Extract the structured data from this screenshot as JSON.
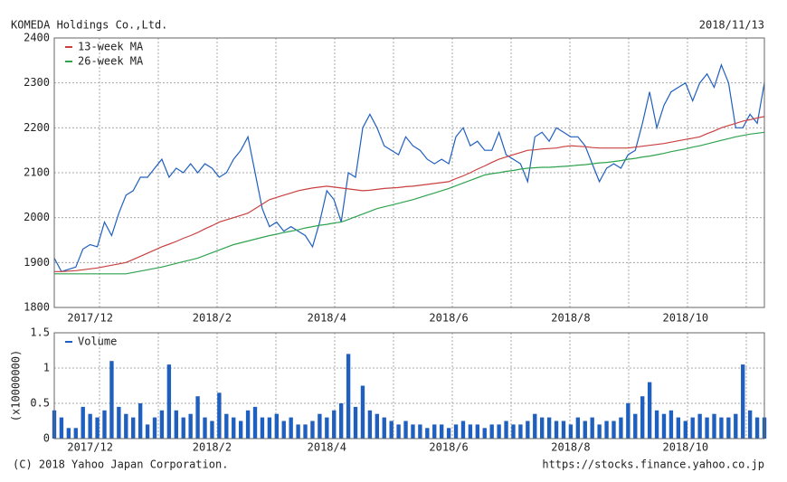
{
  "header": {
    "title": "KOMEDA Holdings Co.,Ltd.",
    "date": "2018/11/13"
  },
  "footer": {
    "copyright": "(C) 2018 Yahoo Japan Corporation.",
    "url": "https://stocks.finance.yahoo.co.jp"
  },
  "chart_data": [
    {
      "type": "line",
      "categories": [
        null,
        null,
        null,
        null,
        null,
        "2017/12",
        null,
        null,
        null,
        null,
        null,
        null,
        null,
        null,
        null,
        null,
        null,
        null,
        null,
        null,
        null,
        null,
        "2018/2",
        null,
        null,
        null,
        null,
        null,
        null,
        null,
        null,
        null,
        null,
        null,
        null,
        null,
        null,
        null,
        "2018/4",
        null,
        null,
        null,
        null,
        null,
        null,
        null,
        null,
        null,
        null,
        null,
        null,
        null,
        null,
        null,
        null,
        "2018/6",
        null,
        null,
        null,
        null,
        null,
        null,
        null,
        null,
        null,
        null,
        null,
        null,
        null,
        null,
        null,
        null,
        "2018/8",
        null,
        null,
        null,
        null,
        null,
        null,
        null,
        null,
        null,
        null,
        null,
        null,
        null,
        null,
        null,
        "2018/10",
        null,
        null,
        null,
        null,
        null,
        null,
        null,
        null,
        null,
        null,
        null
      ],
      "series": [
        {
          "color": "#1f5fbf",
          "values": [
            1910,
            1880,
            1885,
            1890,
            1930,
            1940,
            1935,
            1990,
            1960,
            2010,
            2050,
            2060,
            2090,
            2090,
            2110,
            2130,
            2090,
            2110,
            2100,
            2120,
            2100,
            2120,
            2110,
            2090,
            2100,
            2130,
            2150,
            2180,
            2100,
            2020,
            1980,
            1990,
            1970,
            1980,
            1970,
            1960,
            1935,
            1990,
            2060,
            2040,
            1990,
            2100,
            2090,
            2200,
            2230,
            2200,
            2160,
            2150,
            2140,
            2180,
            2160,
            2150,
            2130,
            2120,
            2130,
            2120,
            2180,
            2200,
            2160,
            2170,
            2150,
            2150,
            2190,
            2140,
            2130,
            2120,
            2080,
            2180,
            2190,
            2170,
            2200,
            2190,
            2180,
            2180,
            2160,
            2120,
            2080,
            2110,
            2120,
            2110,
            2140,
            2150,
            2210,
            2280,
            2200,
            2250,
            2280,
            2290,
            2300,
            2260,
            2300,
            2320,
            2290,
            2340,
            2300,
            2200,
            2200,
            2230,
            2210,
            2300
          ]
        },
        {
          "name": "13-week MA",
          "color": "#c94040",
          "values": [
            1880,
            1880,
            1881,
            1882,
            1884,
            1886,
            1888,
            1891,
            1894,
            1897,
            1900,
            1907,
            1914,
            1921,
            1928,
            1935,
            1941,
            1947,
            1954,
            1960,
            1967,
            1975,
            1982,
            1990,
            1995,
            2000,
            2005,
            2010,
            2020,
            2030,
            2040,
            2045,
            2050,
            2055,
            2060,
            2063,
            2066,
            2068,
            2070,
            2068,
            2066,
            2064,
            2062,
            2060,
            2061,
            2063,
            2065,
            2066,
            2067,
            2069,
            2070,
            2072,
            2074,
            2076,
            2078,
            2080,
            2087,
            2093,
            2100,
            2108,
            2115,
            2123,
            2130,
            2135,
            2140,
            2145,
            2150,
            2151,
            2153,
            2154,
            2155,
            2158,
            2160,
            2159,
            2158,
            2156,
            2155,
            2155,
            2155,
            2155,
            2155,
            2157,
            2159,
            2161,
            2163,
            2165,
            2168,
            2171,
            2174,
            2177,
            2180,
            2187,
            2193,
            2200,
            2205,
            2210,
            2215,
            2218,
            2222,
            2225
          ]
        },
        {
          "name": "26-week MA",
          "color": "#2fa34f",
          "values": [
            1875,
            1875,
            1875,
            1875,
            1875,
            1875,
            1875,
            1875,
            1875,
            1875,
            1875,
            1878,
            1881,
            1884,
            1887,
            1890,
            1894,
            1898,
            1902,
            1906,
            1910,
            1916,
            1922,
            1928,
            1934,
            1940,
            1944,
            1948,
            1952,
            1956,
            1960,
            1963,
            1967,
            1970,
            1973,
            1977,
            1980,
            1983,
            1985,
            1988,
            1990,
            1996,
            2002,
            2008,
            2014,
            2020,
            2024,
            2028,
            2032,
            2036,
            2040,
            2045,
            2050,
            2055,
            2060,
            2065,
            2071,
            2077,
            2083,
            2089,
            2095,
            2098,
            2100,
            2103,
            2105,
            2108,
            2110,
            2111,
            2112,
            2112,
            2113,
            2114,
            2115,
            2117,
            2118,
            2120,
            2122,
            2123,
            2125,
            2127,
            2130,
            2132,
            2135,
            2137,
            2140,
            2143,
            2147,
            2150,
            2153,
            2157,
            2160,
            2164,
            2168,
            2172,
            2176,
            2180,
            2183,
            2186,
            2188,
            2190
          ]
        }
      ],
      "ylim": [
        1800,
        2400
      ],
      "yticks": [
        1800,
        1900,
        2000,
        2100,
        2200,
        2300,
        2400
      ],
      "grid": true
    },
    {
      "type": "bar",
      "ylabel": "(x10000000)",
      "categories": [
        null,
        null,
        null,
        null,
        null,
        "2017/12",
        null,
        null,
        null,
        null,
        null,
        null,
        null,
        null,
        null,
        null,
        null,
        null,
        null,
        null,
        null,
        null,
        "2018/2",
        null,
        null,
        null,
        null,
        null,
        null,
        null,
        null,
        null,
        null,
        null,
        null,
        null,
        null,
        null,
        "2018/4",
        null,
        null,
        null,
        null,
        null,
        null,
        null,
        null,
        null,
        null,
        null,
        null,
        null,
        null,
        null,
        null,
        "2018/6",
        null,
        null,
        null,
        null,
        null,
        null,
        null,
        null,
        null,
        null,
        null,
        null,
        null,
        null,
        null,
        null,
        "2018/8",
        null,
        null,
        null,
        null,
        null,
        null,
        null,
        null,
        null,
        null,
        null,
        null,
        null,
        null,
        null,
        "2018/10",
        null,
        null,
        null,
        null,
        null,
        null,
        null,
        null,
        null,
        null,
        null
      ],
      "series": [
        {
          "name": "Volume",
          "color": "#1f5fbf",
          "values": [
            0.4,
            0.3,
            0.15,
            0.15,
            0.45,
            0.35,
            0.3,
            0.4,
            1.1,
            0.45,
            0.35,
            0.3,
            0.5,
            0.2,
            0.3,
            0.4,
            1.05,
            0.4,
            0.3,
            0.35,
            0.6,
            0.3,
            0.25,
            0.65,
            0.35,
            0.3,
            0.25,
            0.4,
            0.45,
            0.3,
            0.3,
            0.35,
            0.25,
            0.3,
            0.2,
            0.2,
            0.25,
            0.35,
            0.3,
            0.4,
            0.5,
            1.2,
            0.45,
            0.75,
            0.4,
            0.35,
            0.3,
            0.25,
            0.2,
            0.25,
            0.2,
            0.2,
            0.15,
            0.2,
            0.2,
            0.15,
            0.2,
            0.25,
            0.2,
            0.2,
            0.15,
            0.2,
            0.2,
            0.25,
            0.2,
            0.2,
            0.25,
            0.35,
            0.3,
            0.3,
            0.25,
            0.25,
            0.2,
            0.3,
            0.25,
            0.3,
            0.2,
            0.25,
            0.25,
            0.3,
            0.5,
            0.35,
            0.6,
            0.8,
            0.4,
            0.35,
            0.4,
            0.3,
            0.25,
            0.3,
            0.35,
            0.3,
            0.35,
            0.3,
            0.3,
            0.35,
            1.05,
            0.4,
            0.3,
            0.3
          ]
        }
      ],
      "ylim": [
        0,
        1.5
      ],
      "yticks": [
        0,
        0.5,
        1,
        1.5
      ],
      "grid": true
    }
  ]
}
